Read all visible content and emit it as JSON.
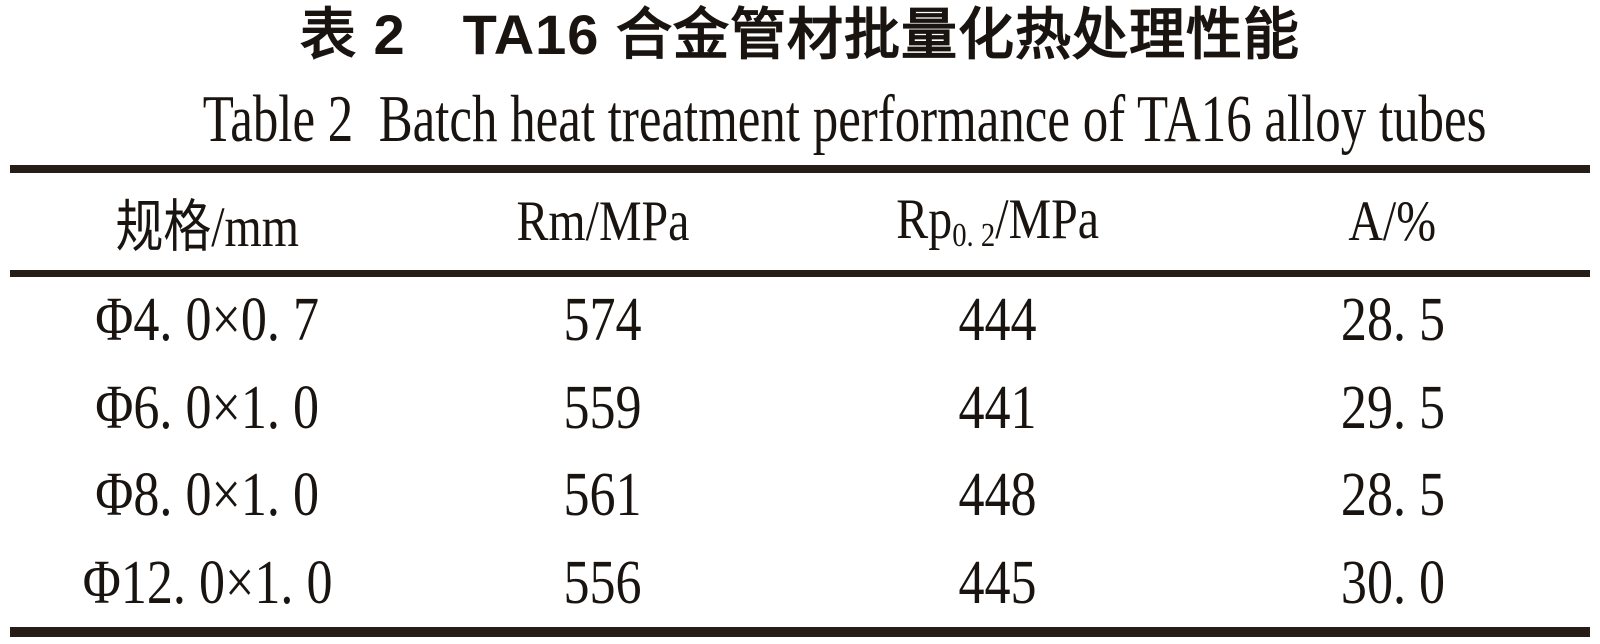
{
  "page": {
    "title_zh": "表 2　TA16 合金管材批量化热处理性能",
    "title_en": "Table 2  Batch heat treatment performance of TA16 alloy tubes"
  },
  "table": {
    "columns": [
      {
        "label": "规格/mm"
      },
      {
        "label": "Rm/MPa"
      },
      {
        "label_prefix": "Rp",
        "label_sub": "0. 2",
        "label_suffix": "/MPa"
      },
      {
        "label": "A/%"
      }
    ],
    "rows": [
      {
        "spec": "Φ4. 0×0. 7",
        "rm": "574",
        "rp02": "444",
        "a": "28. 5"
      },
      {
        "spec": "Φ6. 0×1. 0",
        "rm": "559",
        "rp02": "441",
        "a": "29. 5"
      },
      {
        "spec": "Φ8. 0×1. 0",
        "rm": "561",
        "rp02": "448",
        "a": "28. 5"
      },
      {
        "spec": "Φ12. 0×1. 0",
        "rm": "556",
        "rp02": "445",
        "a": "30. 0"
      }
    ]
  },
  "colors": {
    "rule": "#261d18",
    "text": "#1a1411",
    "background": "#ffffff"
  }
}
